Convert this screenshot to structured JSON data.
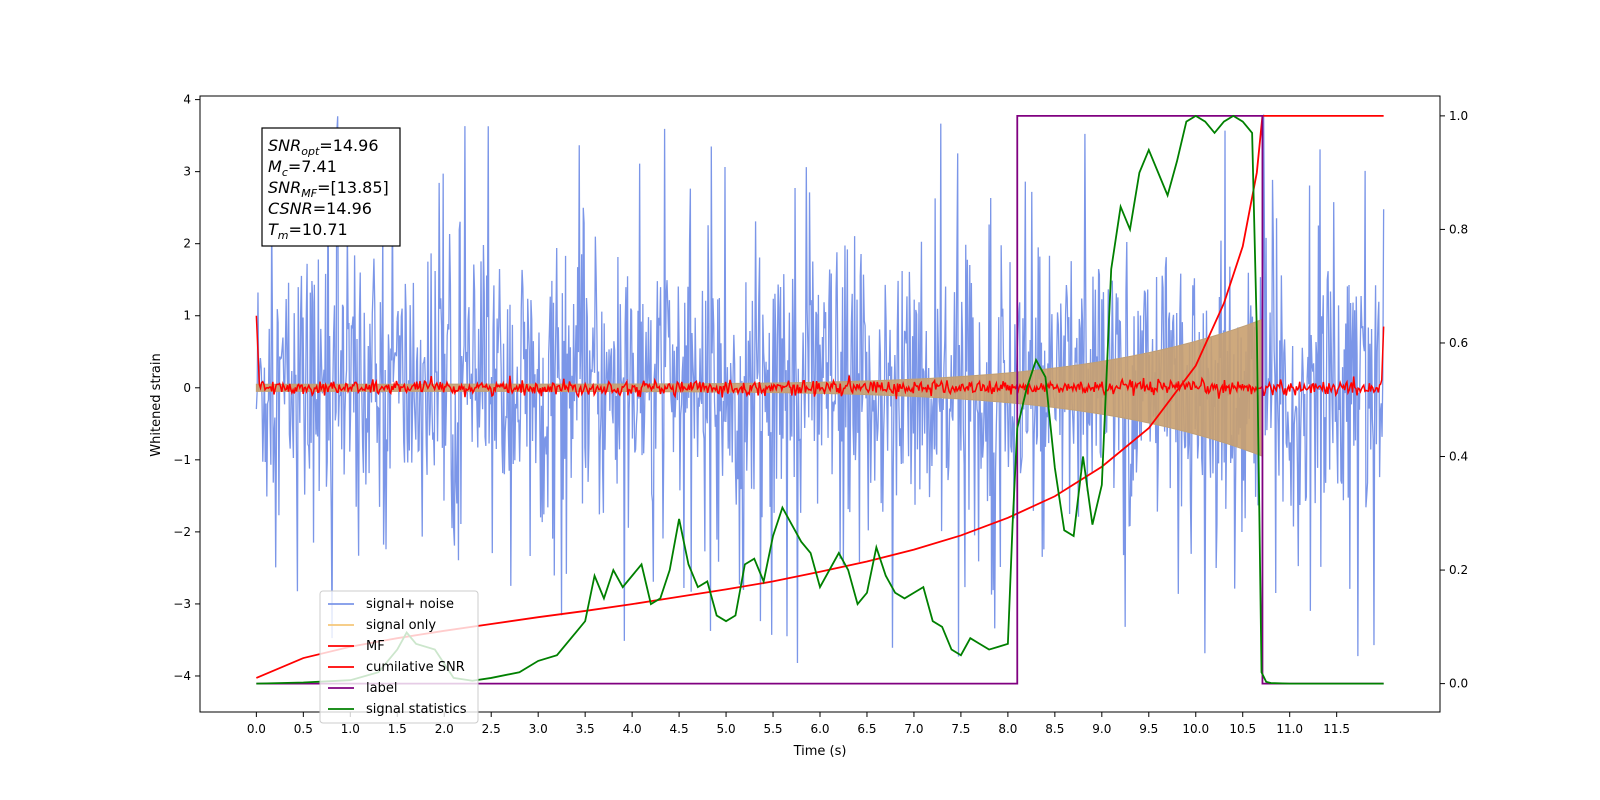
{
  "chart_data": {
    "type": "line",
    "xlabel": "Time (s)",
    "ylabel": "Whitened strain",
    "xlim": [
      -0.6,
      12.6
    ],
    "ylim": [
      -4.5,
      4.05
    ],
    "y2lim": [
      -0.05,
      1.035
    ],
    "x_ticks": [
      0.0,
      0.5,
      1.0,
      1.5,
      2.0,
      2.5,
      3.0,
      3.5,
      4.0,
      4.5,
      5.0,
      5.5,
      6.0,
      6.5,
      7.0,
      7.5,
      8.0,
      8.5,
      9.0,
      9.5,
      10.0,
      10.5,
      11.0,
      11.5
    ],
    "x_tick_labels": [
      "0.0",
      "0.5",
      "1.0",
      "1.5",
      "2.0",
      "2.5",
      "3.0",
      "3.5",
      "4.0",
      "4.5",
      "5.0",
      "5.5",
      "6.0",
      "6.5",
      "7.0",
      "7.5",
      "8.0",
      "8.5",
      "9.0",
      "9.5",
      "10.0",
      "10.5",
      "11.0",
      "11.5"
    ],
    "y_ticks": [
      4,
      3,
      2,
      1,
      0,
      -1,
      -2,
      -3,
      -4
    ],
    "y_tick_labels": [
      "4",
      "3",
      "2",
      "1",
      "0",
      "−1",
      "−2",
      "−3",
      "−4"
    ],
    "y2_ticks": [
      1.0,
      0.8,
      0.6,
      0.4,
      0.2,
      0.0
    ],
    "y2_tick_labels": [
      "1.0",
      "0.8",
      "0.6",
      "0.4",
      "0.2",
      "0.0"
    ],
    "legend_position": "lower-left",
    "legend": [
      {
        "label": "signal+ noise",
        "color": "#7b96e8"
      },
      {
        "label": "signal only",
        "color": "#f5c77a"
      },
      {
        "label": "MF",
        "color": "#ff0000"
      },
      {
        "label": "cumilative SNR",
        "color": "#ff0000"
      },
      {
        "label": "label",
        "color": "#800080"
      },
      {
        "label": "signal statistics",
        "color": "#008000"
      }
    ],
    "annotation": [
      {
        "base": "SNR",
        "sub": "opt",
        "rest": "=14.96"
      },
      {
        "base": "M",
        "sub": "c",
        "rest": "=7.41"
      },
      {
        "base": "SNR",
        "sub": "MF",
        "rest": "=[13.85]"
      },
      {
        "base": "CSNR",
        "sub": "",
        "rest": "=14.96"
      },
      {
        "base": "T",
        "sub": "m",
        "rest": "=10.71"
      }
    ],
    "noise": {
      "t_start": 0.0,
      "t_end": 12.0,
      "band": [
        -2.0,
        1.85
      ],
      "spike_max": 3.95,
      "spike_min": -4.15
    },
    "signal_only": {
      "t_start": 0.0,
      "t_end": 10.71,
      "amp_start": 0.05,
      "amp_end": 0.95
    },
    "mf": {
      "level": 0.0,
      "jitter": 0.1,
      "start_spike": 1.0,
      "end_value": 0.85
    },
    "cumulative_snr": {
      "axis": "right",
      "x": [
        0.0,
        0.5,
        1.0,
        1.5,
        2.0,
        2.5,
        3.0,
        3.5,
        4.0,
        4.5,
        5.0,
        5.5,
        6.0,
        6.5,
        7.0,
        7.5,
        8.0,
        8.5,
        9.0,
        9.5,
        10.0,
        10.3,
        10.5,
        10.65,
        10.71,
        12.0
      ],
      "y": [
        0.01,
        0.045,
        0.065,
        0.08,
        0.093,
        0.105,
        0.117,
        0.128,
        0.14,
        0.153,
        0.166,
        0.18,
        0.197,
        0.215,
        0.236,
        0.261,
        0.292,
        0.33,
        0.382,
        0.45,
        0.56,
        0.67,
        0.77,
        0.9,
        1.0,
        1.0
      ]
    },
    "label_series": {
      "axis": "right",
      "x": [
        0.0,
        8.1,
        8.1,
        10.71,
        10.71,
        12.0
      ],
      "y": [
        0.0,
        0.0,
        1.0,
        1.0,
        0.0,
        0.0
      ]
    },
    "signal_statistics": {
      "axis": "right",
      "x": [
        0.0,
        0.5,
        1.0,
        1.3,
        1.5,
        1.6,
        1.7,
        1.9,
        2.1,
        2.3,
        2.5,
        2.8,
        3.0,
        3.2,
        3.4,
        3.5,
        3.6,
        3.7,
        3.8,
        3.9,
        4.0,
        4.1,
        4.2,
        4.3,
        4.4,
        4.5,
        4.6,
        4.7,
        4.8,
        4.9,
        5.0,
        5.1,
        5.2,
        5.3,
        5.4,
        5.5,
        5.6,
        5.7,
        5.8,
        5.9,
        6.0,
        6.1,
        6.2,
        6.3,
        6.4,
        6.5,
        6.6,
        6.7,
        6.8,
        6.9,
        7.0,
        7.1,
        7.2,
        7.3,
        7.4,
        7.5,
        7.6,
        7.7,
        7.8,
        7.9,
        8.0,
        8.05,
        8.1,
        8.2,
        8.3,
        8.4,
        8.5,
        8.6,
        8.7,
        8.8,
        8.9,
        9.0,
        9.1,
        9.2,
        9.3,
        9.4,
        9.5,
        9.6,
        9.7,
        9.8,
        9.9,
        10.0,
        10.1,
        10.2,
        10.3,
        10.4,
        10.5,
        10.6,
        10.65,
        10.7,
        10.75,
        10.8,
        11.0,
        11.5,
        12.0
      ],
      "y": [
        0.0,
        0.002,
        0.006,
        0.02,
        0.06,
        0.09,
        0.07,
        0.06,
        0.01,
        0.005,
        0.01,
        0.02,
        0.04,
        0.05,
        0.09,
        0.11,
        0.19,
        0.15,
        0.2,
        0.17,
        0.19,
        0.21,
        0.14,
        0.15,
        0.2,
        0.29,
        0.21,
        0.17,
        0.18,
        0.12,
        0.11,
        0.12,
        0.21,
        0.22,
        0.18,
        0.26,
        0.31,
        0.28,
        0.25,
        0.23,
        0.17,
        0.2,
        0.23,
        0.2,
        0.14,
        0.16,
        0.24,
        0.19,
        0.16,
        0.15,
        0.16,
        0.17,
        0.11,
        0.1,
        0.06,
        0.05,
        0.08,
        0.07,
        0.06,
        0.065,
        0.07,
        0.28,
        0.45,
        0.52,
        0.57,
        0.54,
        0.38,
        0.27,
        0.26,
        0.4,
        0.28,
        0.35,
        0.73,
        0.84,
        0.8,
        0.9,
        0.94,
        0.9,
        0.86,
        0.92,
        0.99,
        1.0,
        0.99,
        0.97,
        0.99,
        1.0,
        0.99,
        0.97,
        0.62,
        0.02,
        0.003,
        0.001,
        0.0,
        0.0,
        0.0
      ]
    }
  }
}
